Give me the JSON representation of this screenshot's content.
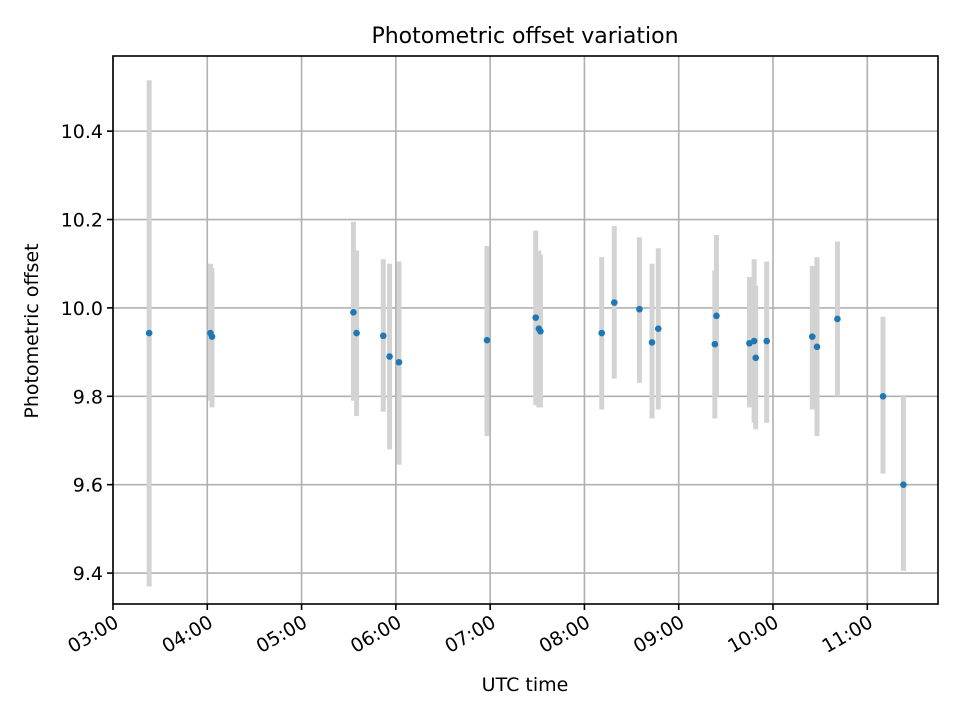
{
  "chart_data": {
    "type": "scatter",
    "title": "Photometric offset variation",
    "xlabel": "UTC time",
    "ylabel": "Photometric offset",
    "x_axis_kind": "time",
    "xlim": [
      "03:00",
      "11:45"
    ],
    "ylim": [
      9.33,
      10.57
    ],
    "xticks": [
      "03:00",
      "04:00",
      "05:00",
      "06:00",
      "07:00",
      "08:00",
      "09:00",
      "10:00",
      "11:00"
    ],
    "yticks": [
      9.4,
      9.6,
      9.8,
      10.0,
      10.2,
      10.4
    ],
    "ytick_labels": [
      "9.4",
      "9.6",
      "9.8",
      "10.0",
      "10.2",
      "10.4"
    ],
    "grid": true,
    "marker_color": "#1f77b4",
    "errorbar_color": "#d3d3d3",
    "series": [
      {
        "points": [
          {
            "x": "03:23",
            "y": 9.943,
            "ylow": 9.37,
            "yhigh": 10.515
          },
          {
            "x": "04:02",
            "y": 9.943,
            "ylow": 9.79,
            "yhigh": 10.1
          },
          {
            "x": "04:03",
            "y": 9.935,
            "ylow": 9.775,
            "yhigh": 10.09
          },
          {
            "x": "05:33",
            "y": 9.99,
            "ylow": 9.79,
            "yhigh": 10.195
          },
          {
            "x": "05:35",
            "y": 9.943,
            "ylow": 9.755,
            "yhigh": 10.13
          },
          {
            "x": "05:52",
            "y": 9.937,
            "ylow": 9.765,
            "yhigh": 10.11
          },
          {
            "x": "05:56",
            "y": 9.89,
            "ylow": 9.68,
            "yhigh": 10.1
          },
          {
            "x": "06:02",
            "y": 9.877,
            "ylow": 9.645,
            "yhigh": 10.105
          },
          {
            "x": "06:58",
            "y": 9.927,
            "ylow": 9.71,
            "yhigh": 10.14
          },
          {
            "x": "07:29",
            "y": 9.978,
            "ylow": 9.78,
            "yhigh": 10.175
          },
          {
            "x": "07:31",
            "y": 9.953,
            "ylow": 9.775,
            "yhigh": 10.13
          },
          {
            "x": "07:32",
            "y": 9.947,
            "ylow": 9.775,
            "yhigh": 10.12
          },
          {
            "x": "08:11",
            "y": 9.943,
            "ylow": 9.77,
            "yhigh": 10.115
          },
          {
            "x": "08:19",
            "y": 10.012,
            "ylow": 9.84,
            "yhigh": 10.185
          },
          {
            "x": "08:35",
            "y": 9.997,
            "ylow": 9.83,
            "yhigh": 10.16
          },
          {
            "x": "08:43",
            "y": 9.922,
            "ylow": 9.75,
            "yhigh": 10.1
          },
          {
            "x": "08:47",
            "y": 9.953,
            "ylow": 9.77,
            "yhigh": 10.135
          },
          {
            "x": "09:23",
            "y": 9.918,
            "ylow": 9.75,
            "yhigh": 10.085
          },
          {
            "x": "09:24",
            "y": 9.982,
            "ylow": 9.8,
            "yhigh": 10.165
          },
          {
            "x": "09:45",
            "y": 9.92,
            "ylow": 9.775,
            "yhigh": 10.07
          },
          {
            "x": "09:48",
            "y": 9.925,
            "ylow": 9.74,
            "yhigh": 10.11
          },
          {
            "x": "09:49",
            "y": 9.887,
            "ylow": 9.725,
            "yhigh": 10.05
          },
          {
            "x": "09:56",
            "y": 9.925,
            "ylow": 9.74,
            "yhigh": 10.105
          },
          {
            "x": "10:25",
            "y": 9.935,
            "ylow": 9.77,
            "yhigh": 10.095
          },
          {
            "x": "10:28",
            "y": 9.912,
            "ylow": 9.71,
            "yhigh": 10.115
          },
          {
            "x": "10:41",
            "y": 9.975,
            "ylow": 9.8,
            "yhigh": 10.15
          },
          {
            "x": "11:10",
            "y": 9.8,
            "ylow": 9.625,
            "yhigh": 9.98
          },
          {
            "x": "11:23",
            "y": 9.6,
            "ylow": 9.405,
            "yhigh": 9.8
          }
        ]
      }
    ]
  }
}
